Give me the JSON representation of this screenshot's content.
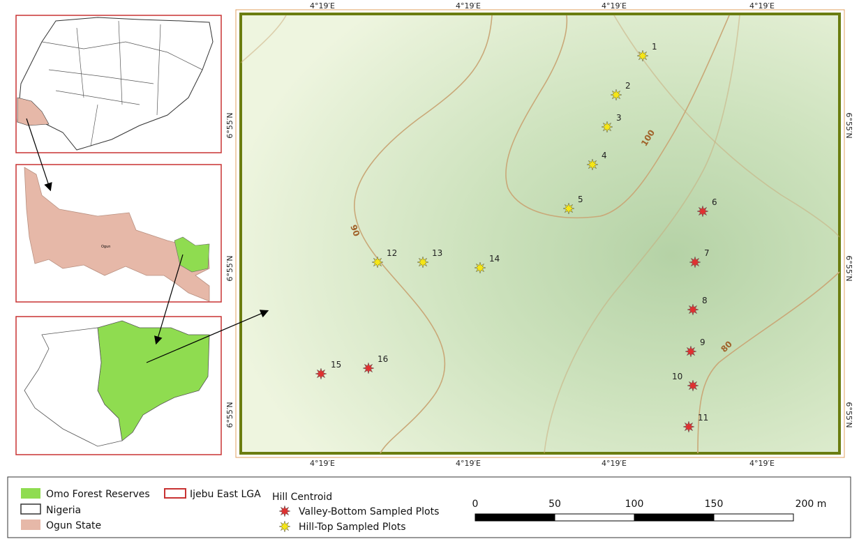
{
  "map": {
    "x_labels_top": [
      "4°19′E",
      "4°19′E",
      "4°19′E",
      "4°19′E"
    ],
    "x_labels_bottom": [
      "4°19′E",
      "4°19′E",
      "4°19′E",
      "4°19′E"
    ],
    "y_labels_left": [
      "6°55′N",
      "6°55′N",
      "6°55′N"
    ],
    "y_labels_right": [
      "6°55′N",
      "6°55′N",
      "6°55′N"
    ],
    "contour_labels": [
      "100",
      "90",
      "80"
    ],
    "hill_top_plots": [
      "1",
      "2",
      "3",
      "4",
      "5",
      "12",
      "13",
      "14"
    ],
    "valley_bottom_plots": [
      "6",
      "7",
      "8",
      "9",
      "10",
      "11",
      "15",
      "16"
    ],
    "hill_top_color": "#f5e616",
    "valley_bottom_color": "#e03030",
    "inset_label": "Ogun"
  },
  "legend": {
    "items": [
      {
        "label": "Omo Forest Reserves",
        "color": "#8fdc50"
      },
      {
        "label": "Ijebu East LGA",
        "color": "#c83232"
      },
      {
        "label": "Hill Centroid"
      },
      {
        "label": "Nigeria",
        "color": "#333333"
      },
      {
        "label": "Ogun State",
        "color": "#e6b8a8"
      },
      {
        "label": "Valley-Bottom Sampled Plots"
      },
      {
        "label": "Hill-Top Sampled Plots"
      }
    ],
    "scale_bar": [
      "0",
      "50",
      "100",
      "150",
      "200 m"
    ]
  }
}
